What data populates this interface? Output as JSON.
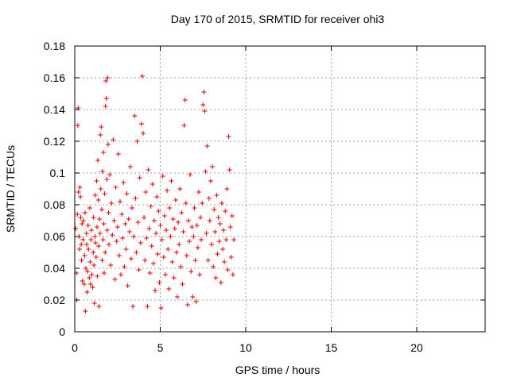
{
  "chart_data": {
    "type": "scatter",
    "title": "Day 170 of 2015, SRMTID for receiver ohi3",
    "xlabel": "GPS time / hours",
    "ylabel": "SRMTID / TECUs",
    "xlim": [
      0,
      24
    ],
    "ylim": [
      0,
      0.18
    ],
    "x_ticks": [
      0,
      5,
      10,
      15,
      20
    ],
    "x_tick_labels": [
      "0",
      "5",
      "10",
      "15",
      "20"
    ],
    "y_ticks": [
      0,
      0.02,
      0.04,
      0.06,
      0.08,
      0.1,
      0.12,
      0.14,
      0.16,
      0.18
    ],
    "y_tick_labels": [
      "0",
      "0.02",
      "0.04",
      "0.06",
      "0.08",
      "0.1",
      "0.12",
      "0.14",
      "0.16",
      "0.18"
    ],
    "grid": true,
    "marker": "+",
    "marker_color": "#e00000",
    "series": [
      {
        "name": "SRMTID",
        "points": [
          [
            0.05,
            0.065
          ],
          [
            0.1,
            0.037
          ],
          [
            0.12,
            0.02
          ],
          [
            0.15,
            0.074
          ],
          [
            0.18,
            0.13
          ],
          [
            0.2,
            0.141
          ],
          [
            0.22,
            0.088
          ],
          [
            0.25,
            0.06
          ],
          [
            0.28,
            0.052
          ],
          [
            0.3,
            0.091
          ],
          [
            0.33,
            0.085
          ],
          [
            0.35,
            0.072
          ],
          [
            0.38,
            0.055
          ],
          [
            0.4,
            0.045
          ],
          [
            0.43,
            0.068
          ],
          [
            0.45,
            0.032
          ],
          [
            0.48,
            0.058
          ],
          [
            0.5,
            0.07
          ],
          [
            0.55,
            0.03
          ],
          [
            0.58,
            0.048
          ],
          [
            0.6,
            0.075
          ],
          [
            0.62,
            0.013
          ],
          [
            0.65,
            0.04
          ],
          [
            0.68,
            0.062
          ],
          [
            0.7,
            0.055
          ],
          [
            0.72,
            0.025
          ],
          [
            0.75,
            0.038
          ],
          [
            0.78,
            0.067
          ],
          [
            0.8,
            0.052
          ],
          [
            0.85,
            0.034
          ],
          [
            0.88,
            0.078
          ],
          [
            0.9,
            0.044
          ],
          [
            0.92,
            0.03
          ],
          [
            0.95,
            0.058
          ],
          [
            0.98,
            0.064
          ],
          [
            1.0,
            0.036
          ],
          [
            1.05,
            0.028
          ],
          [
            1.08,
            0.05
          ],
          [
            1.1,
            0.072
          ],
          [
            1.12,
            0.042
          ],
          [
            1.15,
            0.018
          ],
          [
            1.18,
            0.06
          ],
          [
            1.2,
            0.086
          ],
          [
            1.22,
            0.056
          ],
          [
            1.25,
            0.047
          ],
          [
            1.28,
            0.095
          ],
          [
            1.3,
            0.066
          ],
          [
            1.32,
            0.035
          ],
          [
            1.35,
            0.108
          ],
          [
            1.38,
            0.083
          ],
          [
            1.4,
            0.054
          ],
          [
            1.42,
            0.016
          ],
          [
            1.45,
            0.071
          ],
          [
            1.48,
            0.062
          ],
          [
            1.5,
            0.124
          ],
          [
            1.52,
            0.09
          ],
          [
            1.55,
            0.129
          ],
          [
            1.58,
            0.077
          ],
          [
            1.6,
            0.045
          ],
          [
            1.62,
            0.101
          ],
          [
            1.65,
            0.058
          ],
          [
            1.68,
            0.113
          ],
          [
            1.7,
            0.068
          ],
          [
            1.72,
            0.037
          ],
          [
            1.75,
            0.087
          ],
          [
            1.78,
            0.05
          ],
          [
            1.8,
            0.142
          ],
          [
            1.82,
            0.158
          ],
          [
            1.85,
            0.147
          ],
          [
            1.88,
            0.096
          ],
          [
            1.9,
            0.064
          ],
          [
            1.92,
            0.16
          ],
          [
            1.95,
            0.118
          ],
          [
            1.98,
            0.075
          ],
          [
            2.0,
            0.055
          ],
          [
            2.05,
            0.099
          ],
          [
            2.1,
            0.042
          ],
          [
            2.15,
            0.081
          ],
          [
            2.2,
            0.061
          ],
          [
            2.25,
            0.121
          ],
          [
            2.3,
            0.07
          ],
          [
            2.35,
            0.033
          ],
          [
            2.4,
            0.091
          ],
          [
            2.45,
            0.057
          ],
          [
            2.5,
            0.066
          ],
          [
            2.55,
            0.112
          ],
          [
            2.6,
            0.048
          ],
          [
            2.65,
            0.082
          ],
          [
            2.7,
            0.036
          ],
          [
            2.75,
            0.074
          ],
          [
            2.8,
            0.059
          ],
          [
            2.85,
            0.094
          ],
          [
            2.9,
            0.041
          ],
          [
            2.95,
            0.068
          ],
          [
            3.0,
            0.052
          ],
          [
            3.05,
            0.087
          ],
          [
            3.1,
            0.029
          ],
          [
            3.15,
            0.071
          ],
          [
            3.2,
            0.063
          ],
          [
            3.25,
            0.104
          ],
          [
            3.3,
            0.046
          ],
          [
            3.35,
            0.078
          ],
          [
            3.4,
            0.016
          ],
          [
            3.45,
            0.06
          ],
          [
            3.5,
            0.136
          ],
          [
            3.55,
            0.084
          ],
          [
            3.6,
            0.05
          ],
          [
            3.65,
            0.12
          ],
          [
            3.7,
            0.069
          ],
          [
            3.75,
            0.039
          ],
          [
            3.8,
            0.097
          ],
          [
            3.85,
            0.056
          ],
          [
            3.9,
            0.131
          ],
          [
            3.95,
            0.161
          ],
          [
            4.0,
            0.125
          ],
          [
            4.05,
            0.072
          ],
          [
            4.1,
            0.045
          ],
          [
            4.15,
            0.088
          ],
          [
            4.2,
            0.059
          ],
          [
            4.25,
            0.016
          ],
          [
            4.3,
            0.102
          ],
          [
            4.35,
            0.065
          ],
          [
            4.4,
            0.037
          ],
          [
            4.45,
            0.079
          ],
          [
            4.5,
            0.054
          ],
          [
            4.55,
            0.093
          ],
          [
            4.6,
            0.043
          ],
          [
            4.65,
            0.07
          ],
          [
            4.7,
            0.026
          ],
          [
            4.75,
            0.062
          ],
          [
            4.8,
            0.085
          ],
          [
            4.85,
            0.049
          ],
          [
            4.9,
            0.076
          ],
          [
            4.95,
            0.031
          ],
          [
            5.0,
            0.067
          ],
          [
            5.05,
            0.015
          ],
          [
            5.1,
            0.058
          ],
          [
            5.15,
            0.098
          ],
          [
            5.2,
            0.047
          ],
          [
            5.25,
            0.073
          ],
          [
            5.3,
            0.036
          ],
          [
            5.35,
            0.064
          ],
          [
            5.4,
            0.089
          ],
          [
            5.45,
            0.052
          ],
          [
            5.5,
            0.027
          ],
          [
            5.55,
            0.078
          ],
          [
            5.6,
            0.06
          ],
          [
            5.65,
            0.095
          ],
          [
            5.7,
            0.044
          ],
          [
            5.75,
            0.071
          ],
          [
            5.8,
            0.034
          ],
          [
            5.85,
            0.065
          ],
          [
            5.9,
            0.083
          ],
          [
            5.95,
            0.05
          ],
          [
            6.0,
            0.022
          ],
          [
            6.05,
            0.069
          ],
          [
            6.1,
            0.055
          ],
          [
            6.15,
            0.09
          ],
          [
            6.2,
            0.041
          ],
          [
            6.25,
            0.075
          ],
          [
            6.3,
            0.03
          ],
          [
            6.35,
            0.063
          ],
          [
            6.4,
            0.13
          ],
          [
            6.45,
            0.146
          ],
          [
            6.5,
            0.081
          ],
          [
            6.55,
            0.048
          ],
          [
            6.6,
            0.017
          ],
          [
            6.65,
            0.07
          ],
          [
            6.7,
            0.057
          ],
          [
            6.75,
            0.099
          ],
          [
            6.8,
            0.038
          ],
          [
            6.85,
            0.066
          ],
          [
            6.9,
            0.022
          ],
          [
            6.95,
            0.06
          ],
          [
            7.0,
            0.078
          ],
          [
            7.05,
            0.045
          ],
          [
            7.1,
            0.019
          ],
          [
            7.15,
            0.067
          ],
          [
            7.2,
            0.053
          ],
          [
            7.25,
            0.088
          ],
          [
            7.3,
            0.036
          ],
          [
            7.35,
            0.072
          ],
          [
            7.4,
            0.058
          ],
          [
            7.45,
            0.081
          ],
          [
            7.5,
            0.143
          ],
          [
            7.55,
            0.151
          ],
          [
            7.6,
            0.139
          ],
          [
            7.65,
            0.101
          ],
          [
            7.7,
            0.062
          ],
          [
            7.75,
            0.117
          ],
          [
            7.8,
            0.045
          ],
          [
            7.85,
            0.084
          ],
          [
            7.9,
            0.07
          ],
          [
            7.95,
            0.095
          ],
          [
            8.0,
            0.055
          ],
          [
            8.05,
            0.104
          ],
          [
            8.1,
            0.041
          ],
          [
            8.15,
            0.077
          ],
          [
            8.2,
            0.063
          ],
          [
            8.25,
            0.034
          ],
          [
            8.3,
            0.086
          ],
          [
            8.35,
            0.049
          ],
          [
            8.4,
            0.072
          ],
          [
            8.45,
            0.057
          ],
          [
            8.5,
            0.068
          ],
          [
            8.55,
            0.031
          ],
          [
            8.6,
            0.081
          ],
          [
            8.65,
            0.052
          ],
          [
            8.7,
            0.064
          ],
          [
            8.75,
            0.044
          ],
          [
            8.8,
            0.076
          ],
          [
            8.85,
            0.058
          ],
          [
            8.9,
            0.09
          ],
          [
            8.95,
            0.039
          ],
          [
            9.0,
            0.123
          ],
          [
            9.05,
            0.102
          ],
          [
            9.1,
            0.066
          ],
          [
            9.15,
            0.047
          ],
          [
            9.2,
            0.073
          ],
          [
            9.25,
            0.036
          ],
          [
            9.3,
            0.058
          ]
        ]
      }
    ]
  }
}
